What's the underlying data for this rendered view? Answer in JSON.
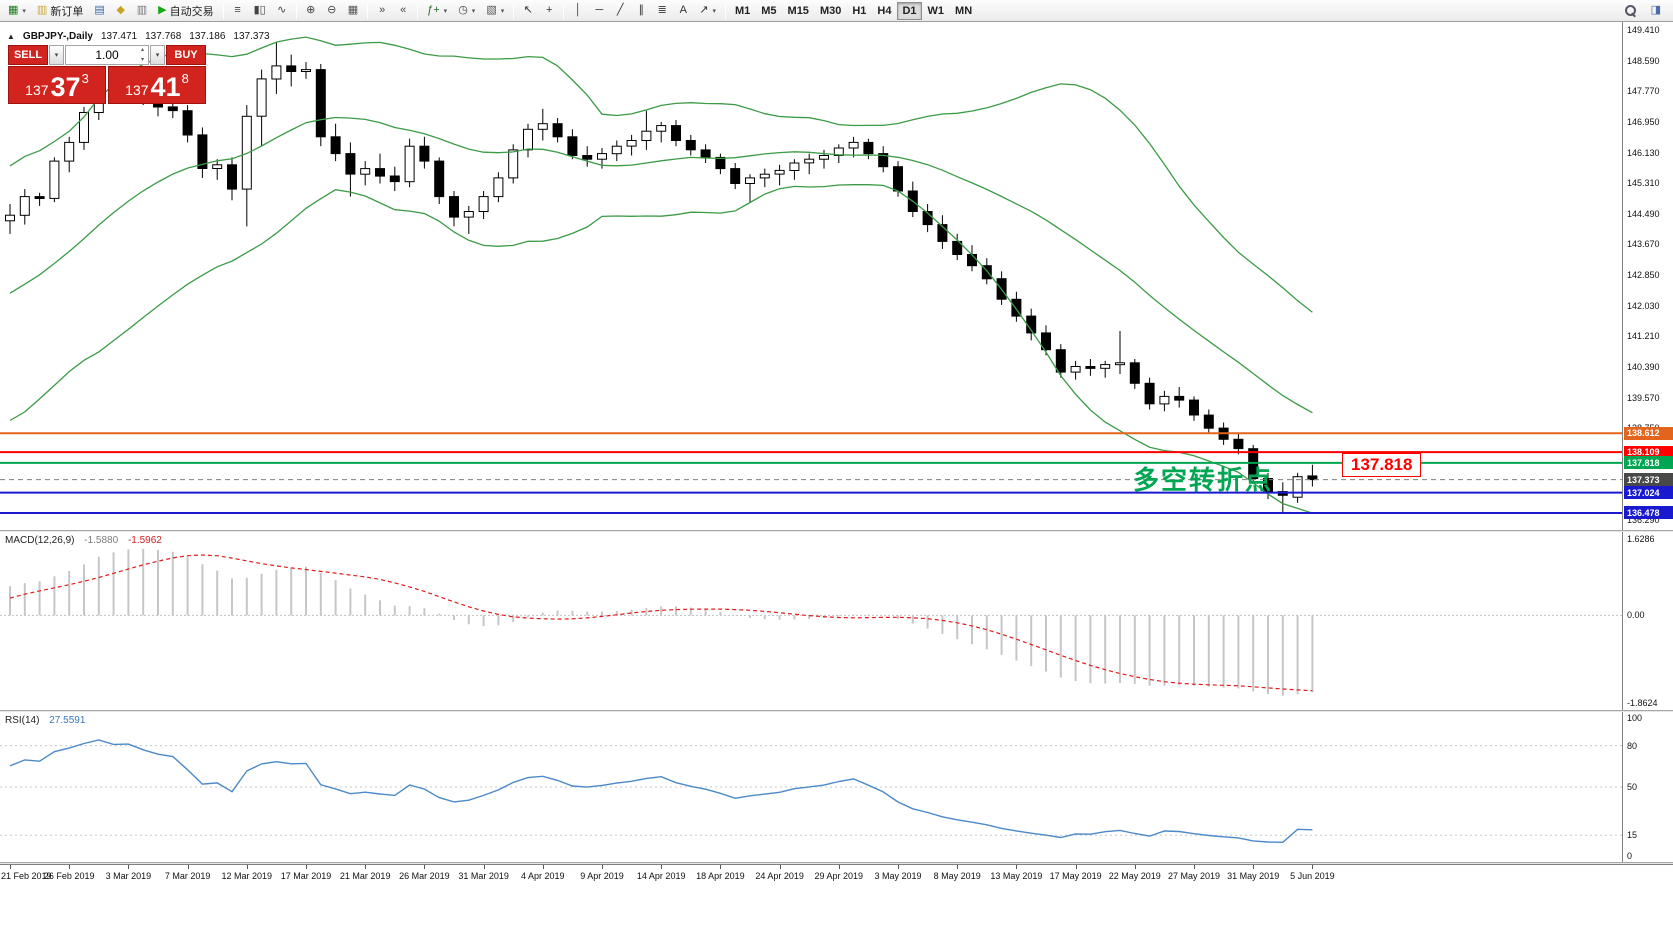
{
  "icons": {
    "dropdown": "▾",
    "spinner_up": "▴",
    "spinner_down": "▾"
  },
  "toolbar": {
    "groups": [
      {
        "items": [
          {
            "name": "new-chart-button",
            "glyph": "▦",
            "color": "#1a7a1a",
            "dropdown": true
          },
          {
            "name": "new-order-button",
            "glyph": "▥",
            "color": "#caa53d",
            "label": "新订单"
          },
          {
            "name": "market-watch-button",
            "glyph": "▤",
            "color": "#3e6aa8"
          },
          {
            "name": "navigator-button",
            "glyph": "◆",
            "color": "#c9a227"
          },
          {
            "name": "terminal-button",
            "glyph": "▥",
            "color": "#777777"
          },
          {
            "name": "autotrading-button",
            "glyph": "▶",
            "color": "#18a818",
            "label": "自动交易"
          }
        ]
      },
      {
        "items": [
          {
            "name": "ohlc-bars-button",
            "glyph": "≡",
            "color": "#444444"
          },
          {
            "name": "candlestick-button",
            "glyph": "▮▯",
            "color": "#444444"
          },
          {
            "name": "line-chart-button",
            "glyph": "∿",
            "color": "#444444"
          }
        ]
      },
      {
        "items": [
          {
            "name": "zoom-in-button",
            "glyph": "⊕",
            "color": "#444444"
          },
          {
            "name": "zoom-out-button",
            "glyph": "⊖",
            "color": "#444444"
          },
          {
            "name": "tile-windows-button",
            "glyph": "▦",
            "color": "#555555"
          }
        ]
      },
      {
        "items": [
          {
            "name": "auto-scroll-button",
            "glyph": "»",
            "color": "#444444"
          },
          {
            "name": "chart-shift-button",
            "glyph": "«",
            "color": "#444444"
          }
        ]
      },
      {
        "items": [
          {
            "name": "indicators-button",
            "glyph": "ƒ+",
            "color": "#2a6a2a",
            "dropdown": true
          },
          {
            "name": "periods-button",
            "glyph": "◷",
            "color": "#444444",
            "dropdown": true
          },
          {
            "name": "templates-button",
            "glyph": "▧",
            "color": "#555555",
            "dropdown": true
          }
        ]
      },
      {
        "items": [
          {
            "name": "cursor-button",
            "glyph": "↖",
            "color": "#333333"
          },
          {
            "name": "crosshair-button",
            "glyph": "+",
            "color": "#333333"
          }
        ]
      },
      {
        "items": [
          {
            "name": "vertical-line-button",
            "glyph": "│",
            "color": "#333333"
          },
          {
            "name": "horizontal-line-button",
            "glyph": "─",
            "color": "#333333"
          },
          {
            "name": "trendline-button",
            "glyph": "╱",
            "color": "#333333"
          },
          {
            "name": "channel-button",
            "glyph": "∥",
            "color": "#333333"
          },
          {
            "name": "fibonacci-button",
            "glyph": "≣",
            "color": "#333333"
          },
          {
            "name": "text-button",
            "glyph": "A",
            "color": "#333333"
          },
          {
            "name": "arrows-button",
            "glyph": "↗",
            "color": "#333333",
            "dropdown": true
          }
        ]
      },
      {
        "items": [
          {
            "name": "timeframe-m1-button",
            "label": "M1",
            "tf": true
          },
          {
            "name": "timeframe-m5-button",
            "label": "M5",
            "tf": true
          },
          {
            "name": "timeframe-m15-button",
            "label": "M15",
            "tf": true
          },
          {
            "name": "timeframe-m30-button",
            "label": "M30",
            "tf": true
          },
          {
            "name": "timeframe-h1-button",
            "label": "H1",
            "tf": true
          },
          {
            "name": "timeframe-h4-button",
            "label": "H4",
            "tf": true
          },
          {
            "name": "timeframe-d1-button",
            "label": "D1",
            "tf": true,
            "active": true
          },
          {
            "name": "timeframe-w1-button",
            "label": "W1",
            "tf": true
          },
          {
            "name": "timeframe-mn-button",
            "label": "MN",
            "tf": true
          }
        ]
      }
    ],
    "right_items": [
      {
        "name": "search-button",
        "magnifier": true
      },
      {
        "name": "community-button",
        "glyph": "◨",
        "color": "#4a6fa5"
      }
    ]
  },
  "chart_header": {
    "collapse_icon": "▲",
    "symbol": "GBPJPY-,Daily",
    "open": "137.471",
    "high": "137.768",
    "low": "137.186",
    "close": "137.373"
  },
  "trade_panel": {
    "sell_label": "SELL",
    "buy_label": "BUY",
    "volume": "1.00",
    "bid_prefix": "137",
    "bid_pips": "37",
    "bid_point": "3",
    "ask_prefix": "137",
    "ask_pips": "41",
    "ask_point": "8",
    "button_color": "#d2241e"
  },
  "annotation": {
    "text": "多空转折点",
    "color": "#00a651"
  },
  "price_callout": {
    "text": "137.818",
    "color": "#ff0000"
  },
  "chart_data": {
    "type": "candlestick",
    "symbol": "GBPJPY",
    "timeframe": "Daily",
    "price_scale": {
      "max": 149.41,
      "min": 136.29
    },
    "axis_ticks": [
      "149.410",
      "148.590",
      "147.770",
      "146.950",
      "146.130",
      "145.310",
      "144.490",
      "143.670",
      "142.850",
      "142.030",
      "141.210",
      "140.390",
      "139.570",
      "138.750",
      "136.290"
    ],
    "date_labels": [
      "21 Feb 2019",
      "26 Feb 2019",
      "3 Mar 2019",
      "7 Mar 2019",
      "12 Mar 2019",
      "17 Mar 2019",
      "21 Mar 2019",
      "26 Mar 2019",
      "31 Mar 2019",
      "4 Apr 2019",
      "9 Apr 2019",
      "14 Apr 2019",
      "18 Apr 2019",
      "24 Apr 2019",
      "29 Apr 2019",
      "3 May 2019",
      "8 May 2019",
      "13 May 2019",
      "17 May 2019",
      "22 May 2019",
      "27 May 2019",
      "31 May 2019",
      "5 Jun 2019"
    ],
    "label_every": 4,
    "candles_ohlc": [
      [
        144.3,
        144.75,
        143.95,
        144.45
      ],
      [
        144.45,
        145.15,
        144.2,
        144.95
      ],
      [
        144.95,
        145.05,
        144.7,
        144.9
      ],
      [
        144.9,
        146.0,
        144.8,
        145.9
      ],
      [
        145.9,
        146.55,
        145.6,
        146.4
      ],
      [
        146.4,
        147.35,
        146.2,
        147.2
      ],
      [
        147.2,
        148.1,
        147.0,
        147.95
      ],
      [
        147.95,
        148.45,
        147.55,
        147.75
      ],
      [
        147.75,
        147.9,
        147.5,
        147.8
      ],
      [
        147.8,
        148.3,
        147.4,
        147.55
      ],
      [
        147.55,
        147.8,
        147.1,
        147.35
      ],
      [
        147.35,
        147.6,
        147.05,
        147.25
      ],
      [
        147.25,
        147.4,
        146.4,
        146.6
      ],
      [
        146.6,
        146.8,
        145.45,
        145.7
      ],
      [
        145.7,
        145.95,
        145.4,
        145.8
      ],
      [
        145.8,
        146.0,
        144.85,
        145.15
      ],
      [
        145.15,
        147.4,
        144.15,
        147.1
      ],
      [
        147.1,
        148.35,
        146.3,
        148.1
      ],
      [
        148.1,
        149.1,
        147.7,
        148.45
      ],
      [
        148.45,
        148.75,
        147.9,
        148.3
      ],
      [
        148.3,
        148.55,
        148.1,
        148.35
      ],
      [
        148.35,
        148.5,
        146.3,
        146.55
      ],
      [
        146.55,
        146.9,
        145.9,
        146.1
      ],
      [
        146.1,
        146.4,
        144.95,
        145.55
      ],
      [
        145.55,
        145.9,
        145.25,
        145.7
      ],
      [
        145.7,
        146.1,
        145.3,
        145.5
      ],
      [
        145.5,
        145.75,
        145.1,
        145.35
      ],
      [
        145.35,
        146.5,
        145.2,
        146.3
      ],
      [
        146.3,
        146.55,
        145.7,
        145.9
      ],
      [
        145.9,
        146.0,
        144.75,
        144.95
      ],
      [
        144.95,
        145.1,
        144.15,
        144.4
      ],
      [
        144.4,
        144.7,
        143.95,
        144.55
      ],
      [
        144.55,
        145.1,
        144.35,
        144.95
      ],
      [
        144.95,
        145.6,
        144.8,
        145.45
      ],
      [
        145.45,
        146.35,
        145.3,
        146.2
      ],
      [
        146.2,
        146.9,
        146.0,
        146.75
      ],
      [
        146.75,
        147.3,
        146.45,
        146.9
      ],
      [
        146.9,
        147.05,
        146.4,
        146.55
      ],
      [
        146.55,
        146.75,
        145.95,
        146.05
      ],
      [
        146.05,
        146.3,
        145.75,
        145.95
      ],
      [
        145.95,
        146.25,
        145.7,
        146.1
      ],
      [
        146.1,
        146.45,
        145.9,
        146.3
      ],
      [
        146.3,
        146.6,
        146.05,
        146.45
      ],
      [
        146.45,
        147.25,
        146.2,
        146.7
      ],
      [
        146.7,
        146.95,
        146.4,
        146.85
      ],
      [
        146.85,
        147.0,
        146.3,
        146.45
      ],
      [
        146.45,
        146.6,
        146.05,
        146.2
      ],
      [
        146.2,
        146.35,
        145.85,
        146.0
      ],
      [
        146.0,
        146.1,
        145.55,
        145.7
      ],
      [
        145.7,
        145.85,
        145.15,
        145.3
      ],
      [
        145.3,
        145.55,
        144.8,
        145.45
      ],
      [
        145.45,
        145.7,
        145.2,
        145.55
      ],
      [
        145.55,
        145.8,
        145.25,
        145.65
      ],
      [
        145.65,
        145.95,
        145.4,
        145.85
      ],
      [
        145.85,
        146.1,
        145.55,
        145.95
      ],
      [
        145.95,
        146.2,
        145.7,
        146.05
      ],
      [
        146.05,
        146.35,
        145.85,
        146.25
      ],
      [
        146.25,
        146.55,
        146.0,
        146.4
      ],
      [
        146.4,
        146.5,
        145.95,
        146.1
      ],
      [
        146.1,
        146.3,
        145.6,
        145.75
      ],
      [
        145.75,
        145.9,
        144.95,
        145.1
      ],
      [
        145.1,
        145.35,
        144.4,
        144.55
      ],
      [
        144.55,
        144.75,
        144.0,
        144.2
      ],
      [
        144.2,
        144.45,
        143.55,
        143.75
      ],
      [
        143.75,
        143.95,
        143.25,
        143.4
      ],
      [
        143.4,
        143.65,
        142.95,
        143.1
      ],
      [
        143.1,
        143.3,
        142.6,
        142.75
      ],
      [
        142.75,
        142.95,
        142.05,
        142.2
      ],
      [
        142.2,
        142.4,
        141.6,
        141.75
      ],
      [
        141.75,
        141.95,
        141.1,
        141.3
      ],
      [
        141.3,
        141.5,
        140.7,
        140.85
      ],
      [
        140.85,
        141.0,
        140.1,
        140.25
      ],
      [
        140.25,
        140.55,
        140.05,
        140.4
      ],
      [
        140.4,
        140.6,
        140.15,
        140.35
      ],
      [
        140.35,
        140.55,
        140.1,
        140.45
      ],
      [
        140.45,
        141.35,
        140.2,
        140.5
      ],
      [
        140.5,
        140.6,
        139.8,
        139.95
      ],
      [
        139.95,
        140.1,
        139.25,
        139.4
      ],
      [
        139.4,
        139.75,
        139.2,
        139.6
      ],
      [
        139.6,
        139.85,
        139.3,
        139.5
      ],
      [
        139.5,
        139.6,
        138.95,
        139.1
      ],
      [
        139.1,
        139.25,
        138.6,
        138.75
      ],
      [
        138.75,
        138.9,
        138.3,
        138.45
      ],
      [
        138.45,
        138.6,
        138.05,
        138.2
      ],
      [
        138.2,
        138.3,
        137.25,
        137.4
      ],
      [
        137.4,
        137.55,
        136.85,
        137.05
      ],
      [
        137.05,
        137.3,
        136.5,
        136.95
      ],
      [
        136.9,
        137.55,
        136.75,
        137.45
      ],
      [
        137.471,
        137.768,
        137.186,
        137.373
      ]
    ],
    "warmup_closes": [
      143.6,
      143.2,
      142.9,
      142.6,
      142.3,
      142.0,
      141.7,
      141.4,
      141.1,
      140.8,
      140.4,
      140.1,
      139.9,
      139.8,
      140.0,
      140.3,
      140.7,
      141.1,
      141.6,
      142.1,
      142.6,
      143.0,
      143.4,
      143.7,
      143.9,
      144.1,
      144.2,
      144.1,
      144.0,
      144.2
    ],
    "overlays": {
      "bollinger": {
        "period": 20,
        "deviation": 2,
        "color": "#3c9b46"
      }
    },
    "levels": [
      {
        "price": 138.612,
        "label": "138.612",
        "color": "#e3641c",
        "width": 2
      },
      {
        "price": 138.109,
        "label": "138.109",
        "color": "#fe0000",
        "width": 2
      },
      {
        "price": 137.818,
        "label": "137.818",
        "color": "#00a651",
        "width": 2
      },
      {
        "price": 137.024,
        "label": "137.024",
        "color": "#1919cf",
        "width": 2
      },
      {
        "price": 136.478,
        "label": "136.478",
        "color": "#1919cf",
        "width": 2
      }
    ],
    "current_price": {
      "price": 137.373,
      "label": "137.373",
      "tag_color": "#494949",
      "line_color": "#808080"
    },
    "macd": {
      "label": "MACD(12,26,9)",
      "value": "-1.5880",
      "signal_value": "-1.5962",
      "fast": 12,
      "slow": 26,
      "signal": 9,
      "scale_max": 1.6286,
      "scale_min": -1.8624,
      "axis_labels": [
        "1.6286",
        "0.00",
        "-1.8624"
      ],
      "hist_color": "#c6c6c6",
      "signal_color": "#e21a1a"
    },
    "rsi": {
      "label": "RSI(14)",
      "value": "27.5591",
      "period": 14,
      "levels": [
        80,
        50,
        15
      ],
      "axis_labels": [
        "100",
        "80",
        "50",
        "15",
        "0"
      ],
      "scale_max": 100,
      "scale_min": 0,
      "line_color": "#4b89c8"
    }
  }
}
